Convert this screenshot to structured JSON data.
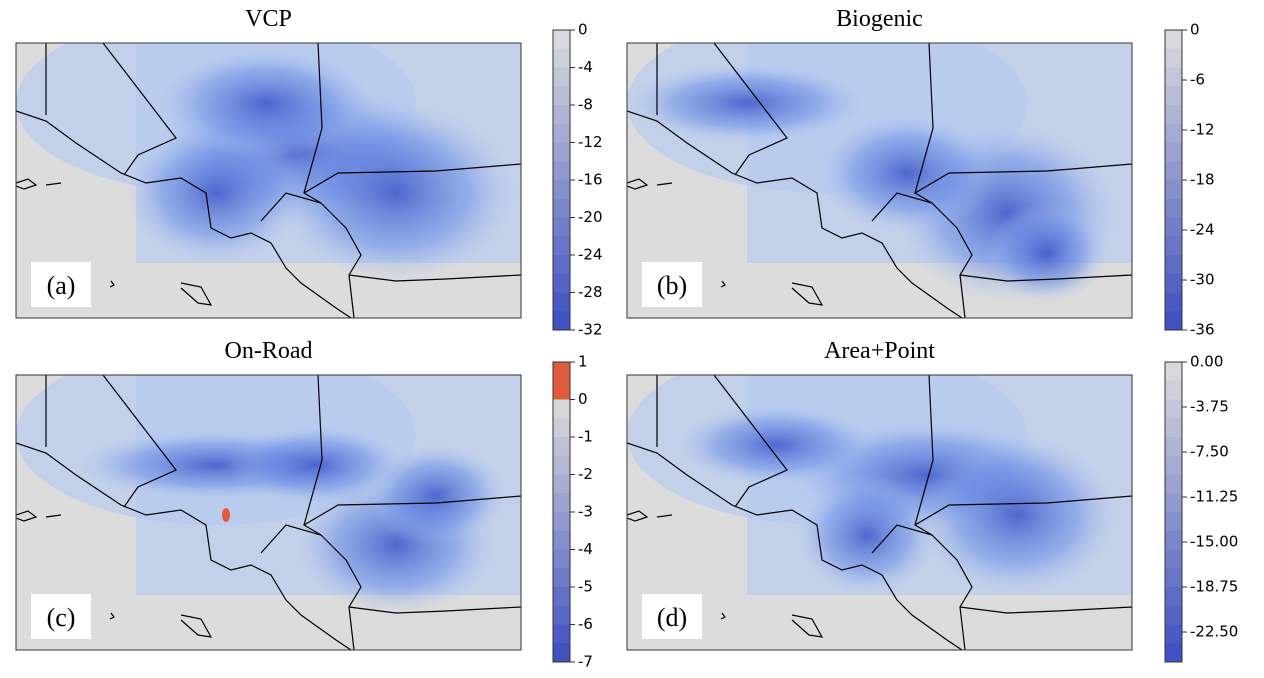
{
  "panels": [
    {
      "title": "VCP",
      "label": "(a)",
      "colorbar": {
        "lim": [
          -32,
          0
        ],
        "ticks": [
          0,
          -4,
          -8,
          -12,
          -16,
          -20,
          -24,
          -28,
          -32
        ]
      }
    },
    {
      "title": "Biogenic",
      "label": "(b)",
      "colorbar": {
        "lim": [
          -36,
          0
        ],
        "ticks": [
          0,
          -6,
          -12,
          -18,
          -24,
          -30,
          -36
        ]
      }
    },
    {
      "title": "On-Road",
      "label": "(c)",
      "colorbar": {
        "lim": [
          -7,
          1
        ],
        "ticks": [
          1,
          0,
          -1,
          -2,
          -3,
          -4,
          -5,
          -6,
          -7
        ]
      }
    },
    {
      "title": "Area+Point",
      "label": "(d)",
      "colorbar": {
        "lim": [
          -25,
          0
        ],
        "ticks": [
          {
            "value": 0,
            "label": "0.00"
          },
          -3.75,
          {
            "value": -7.5,
            "label": "-7.50"
          },
          -11.25,
          {
            "value": -15,
            "label": "-15.00"
          },
          -18.75,
          {
            "value": -22.5,
            "label": "-22.50"
          }
        ]
      }
    }
  ]
}
